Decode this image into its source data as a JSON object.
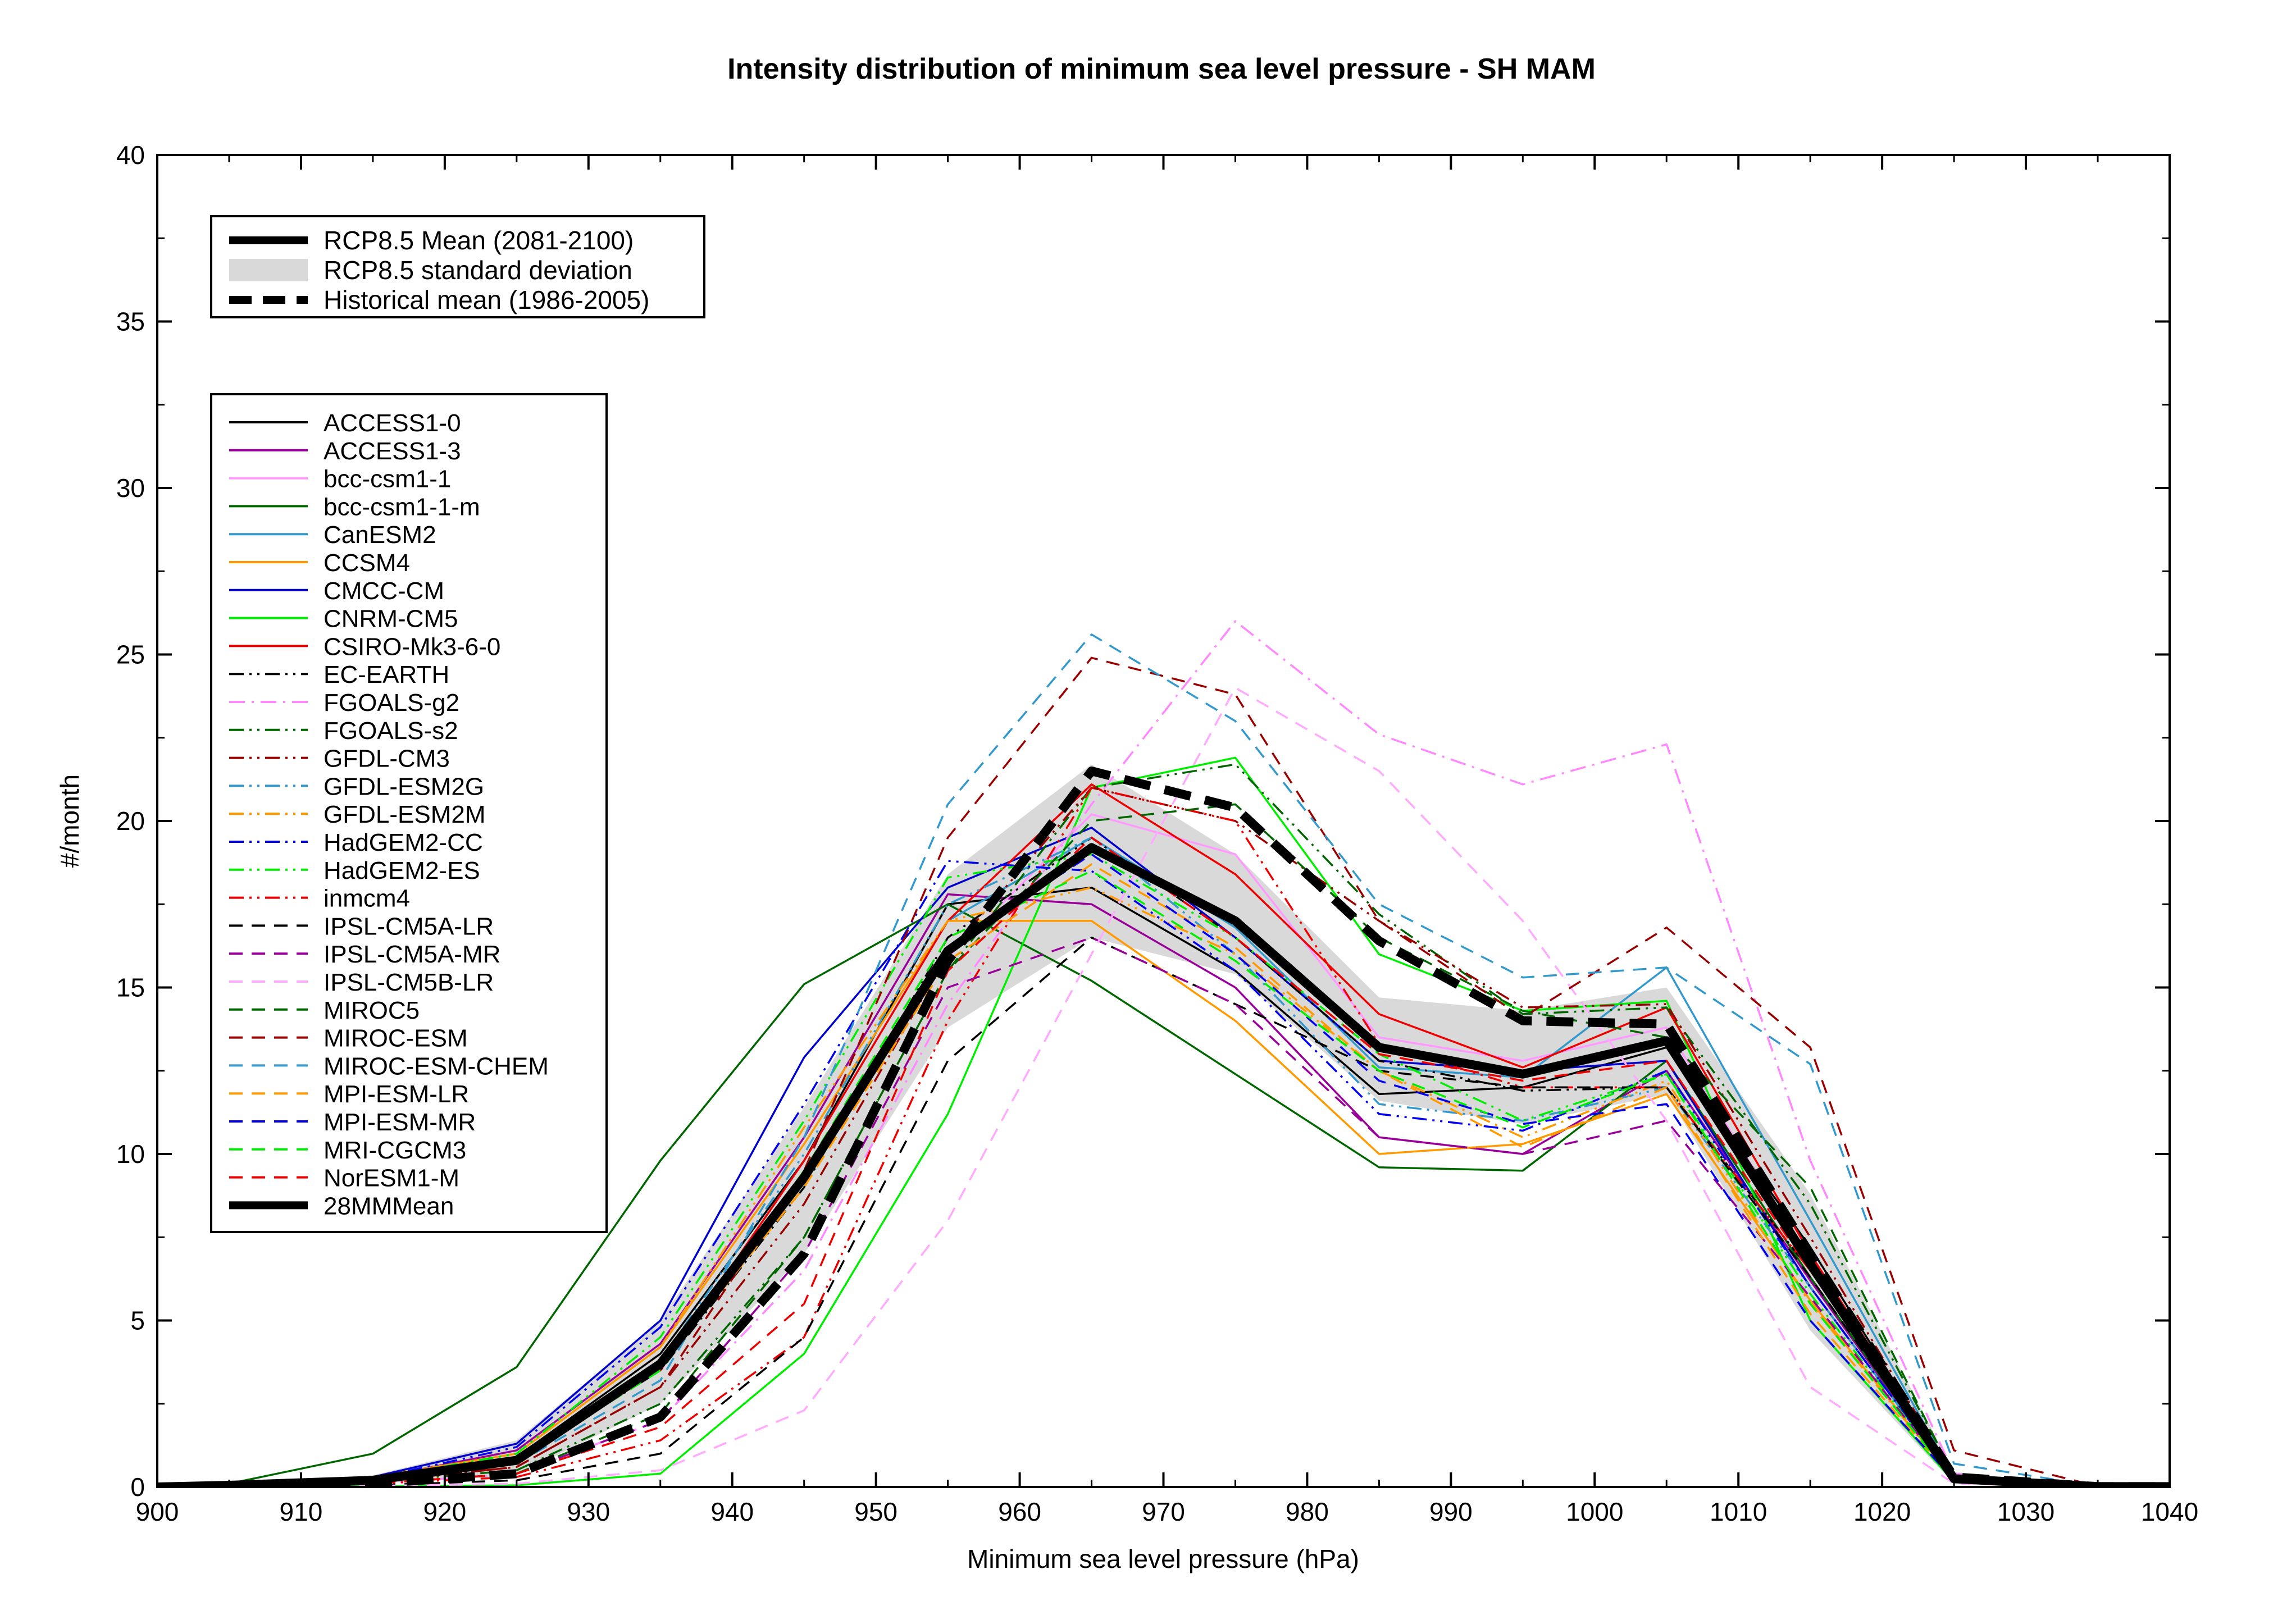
{
  "chart_data": {
    "type": "line",
    "title": "Intensity distribution of minimum sea level pressure - SH MAM",
    "xlabel": "Minimum sea level pressure (hPa)",
    "ylabel": "#/month",
    "xlim": [
      900,
      1040
    ],
    "ylim": [
      0,
      40
    ],
    "xticks": [
      "900",
      "910",
      "920",
      "930",
      "940",
      "950",
      "960",
      "970",
      "980",
      "990",
      "1000",
      "1010",
      "1020",
      "1030",
      "1040"
    ],
    "yticks": [
      "0",
      "5",
      "10",
      "15",
      "20",
      "25",
      "30",
      "35",
      "40"
    ],
    "x": [
      900,
      905,
      915,
      925,
      935,
      945,
      955,
      965,
      975,
      985,
      995,
      1005,
      1015,
      1025,
      1035,
      1040
    ],
    "grid": false,
    "legend_top": {
      "position": "top-left",
      "entries": [
        "RCP8.5 Mean (2081-2100)",
        "RCP8.5 standard deviation",
        "Historical mean (1986-2005)"
      ]
    },
    "legend_models": {
      "position": "upper-left"
    },
    "std_band": {
      "name": "RCP8.5 standard deviation",
      "color": "#d9d9d9",
      "lower": [
        0,
        0.02,
        0.1,
        0.35,
        2.5,
        7.0,
        13.8,
        16.5,
        15.4,
        11.6,
        10.9,
        11.8,
        4.7,
        0.1,
        0,
        0
      ],
      "upper": [
        0.05,
        0.12,
        0.35,
        1.4,
        5.0,
        11.4,
        18.4,
        21.7,
        19.0,
        14.7,
        14.3,
        15.0,
        8.8,
        0.45,
        0.02,
        0.02
      ]
    },
    "rcp_mean": {
      "name": "RCP8.5 Mean (2081-2100)",
      "values": [
        0,
        0.05,
        0.2,
        0.8,
        3.7,
        9.3,
        16.1,
        19.2,
        17.0,
        13.2,
        12.4,
        13.4,
        6.7,
        0.25,
        0.01,
        0.01
      ]
    },
    "historical_mean": {
      "name": "Historical mean (1986-2005)",
      "values": [
        0,
        0.02,
        0.1,
        0.4,
        2.1,
        7.0,
        15.8,
        21.5,
        20.4,
        16.4,
        14.0,
        13.9,
        7.0,
        0.3,
        0.01,
        0.01
      ]
    },
    "series": [
      {
        "name": "ACCESS1-0",
        "color": "#000000",
        "style": "solid",
        "values": [
          0,
          0.05,
          0.25,
          0.9,
          4.0,
          9.8,
          17.5,
          18.0,
          15.5,
          11.8,
          12.0,
          13.2,
          7.2,
          0.3,
          0.01,
          0.01
        ]
      },
      {
        "name": "ACCESS1-3",
        "color": "#990099",
        "style": "solid",
        "values": [
          0,
          0.05,
          0.25,
          1.1,
          4.3,
          10.5,
          17.8,
          17.5,
          15.0,
          10.5,
          10.0,
          12.5,
          6.2,
          0.2,
          0.01,
          0.01
        ]
      },
      {
        "name": "bcc-csm1-1",
        "color": "#ff99ff",
        "style": "solid",
        "values": [
          0,
          0.05,
          0.2,
          0.9,
          3.8,
          9.2,
          15.9,
          20.2,
          19.0,
          13.5,
          12.8,
          13.8,
          6.8,
          0.25,
          0.01,
          0.01
        ]
      },
      {
        "name": "bcc-csm1-1-m",
        "color": "#006600",
        "style": "solid",
        "values": [
          0,
          0.1,
          1.0,
          3.6,
          9.8,
          15.1,
          17.5,
          15.2,
          12.4,
          9.6,
          9.5,
          12.8,
          6.3,
          0.2,
          0.01,
          0.01
        ]
      },
      {
        "name": "CanESM2",
        "color": "#3399cc",
        "style": "solid",
        "values": [
          0,
          0.05,
          0.2,
          0.9,
          3.5,
          9.8,
          17.0,
          19.5,
          16.8,
          12.6,
          12.3,
          15.6,
          8.0,
          0.3,
          0.01,
          0.01
        ]
      },
      {
        "name": "CCSM4",
        "color": "#ff9900",
        "style": "solid",
        "values": [
          0,
          0.05,
          0.3,
          1.0,
          4.2,
          10.3,
          17.0,
          17.0,
          14.0,
          10.0,
          10.3,
          11.8,
          5.6,
          0.2,
          0.01,
          0.01
        ]
      },
      {
        "name": "CMCC-CM",
        "color": "#0000cc",
        "style": "solid",
        "values": [
          0,
          0.05,
          0.3,
          1.3,
          5.0,
          12.9,
          18.0,
          19.8,
          16.5,
          12.8,
          12.5,
          12.8,
          6.0,
          0.2,
          0.01,
          0.01
        ]
      },
      {
        "name": "CNRM-CM5",
        "color": "#00ee00",
        "style": "solid",
        "values": [
          0,
          0.01,
          0.02,
          0.05,
          0.4,
          4.0,
          11.2,
          21.0,
          21.9,
          16.0,
          14.3,
          14.6,
          5.0,
          0.15,
          0.01,
          0.01
        ]
      },
      {
        "name": "CSIRO-Mk3-6-0",
        "color": "#ee0000",
        "style": "solid",
        "values": [
          0,
          0.05,
          0.2,
          0.9,
          3.5,
          9.8,
          17.0,
          21.1,
          18.4,
          14.2,
          12.6,
          14.4,
          7.0,
          0.3,
          0.01,
          0.01
        ]
      },
      {
        "name": "EC-EARTH",
        "color": "#000000",
        "style": "dashdotdot",
        "values": [
          0,
          0.05,
          0.2,
          0.8,
          3.5,
          9.0,
          16.5,
          19.5,
          16.5,
          12.8,
          11.9,
          12.0,
          6.5,
          0.25,
          0.01,
          0.01
        ]
      },
      {
        "name": "FGOALS-g2",
        "color": "#ff88ff",
        "style": "dashdot",
        "values": [
          0,
          0.02,
          0.1,
          0.4,
          2.0,
          6.5,
          14.5,
          20.5,
          26.0,
          22.6,
          21.1,
          22.3,
          9.8,
          0.4,
          0.01,
          0.01
        ]
      },
      {
        "name": "FGOALS-s2",
        "color": "#006600",
        "style": "dashdotdot",
        "values": [
          0,
          0.03,
          0.15,
          0.5,
          2.5,
          7.5,
          15.5,
          21.0,
          21.7,
          17.2,
          14.2,
          14.4,
          8.5,
          0.35,
          0.01,
          0.01
        ]
      },
      {
        "name": "GFDL-CM3",
        "color": "#990000",
        "style": "dashdotdot",
        "values": [
          0,
          0.03,
          0.15,
          0.6,
          3.0,
          8.5,
          16.0,
          21.0,
          20.0,
          17.0,
          14.4,
          14.5,
          7.5,
          0.3,
          0.01,
          0.01
        ]
      },
      {
        "name": "GFDL-ESM2G",
        "color": "#3399cc",
        "style": "dashdotdot",
        "values": [
          0,
          0.05,
          0.2,
          0.9,
          3.8,
          10.0,
          17.5,
          19.5,
          16.0,
          11.5,
          11.0,
          12.0,
          6.0,
          0.2,
          0.01,
          0.01
        ]
      },
      {
        "name": "GFDL-ESM2M",
        "color": "#ff9900",
        "style": "dashdotdot",
        "values": [
          0,
          0.05,
          0.25,
          1.0,
          4.2,
          10.8,
          17.0,
          18.0,
          16.0,
          12.5,
          10.5,
          12.2,
          5.5,
          0.2,
          0.01,
          0.01
        ]
      },
      {
        "name": "HadGEM2-CC",
        "color": "#0000ee",
        "style": "dashdotdot",
        "values": [
          0,
          0.05,
          0.25,
          1.2,
          4.8,
          11.5,
          18.8,
          18.5,
          15.5,
          11.2,
          10.7,
          12.5,
          6.0,
          0.2,
          0.01,
          0.01
        ]
      },
      {
        "name": "HadGEM2-ES",
        "color": "#00ee00",
        "style": "dashdotdot",
        "values": [
          0,
          0.05,
          0.25,
          1.0,
          4.5,
          11.0,
          18.3,
          19.0,
          16.5,
          13.0,
          11.0,
          12.4,
          5.8,
          0.2,
          0.01,
          0.01
        ]
      },
      {
        "name": "inmcm4",
        "color": "#ee0000",
        "style": "dashdotdot",
        "values": [
          0,
          0.02,
          0.1,
          0.3,
          1.4,
          4.5,
          14.0,
          21.0,
          20.0,
          13.3,
          12.0,
          12.0,
          6.5,
          0.25,
          0.01,
          0.01
        ]
      },
      {
        "name": "IPSL-CM5A-LR",
        "color": "#000000",
        "style": "dashed",
        "values": [
          0,
          0.01,
          0.05,
          0.2,
          1.0,
          4.5,
          12.8,
          16.5,
          14.5,
          12.5,
          12.0,
          12.0,
          6.3,
          0.25,
          0.01,
          0.01
        ]
      },
      {
        "name": "IPSL-CM5A-MR",
        "color": "#990099",
        "style": "dashed",
        "values": [
          0,
          0.02,
          0.1,
          0.4,
          2.0,
          7.0,
          15.0,
          16.5,
          14.5,
          10.5,
          10.0,
          11.0,
          5.7,
          0.2,
          0.01,
          0.01
        ]
      },
      {
        "name": "IPSL-CM5B-LR",
        "color": "#ffaaff",
        "style": "dashed",
        "values": [
          0,
          0.01,
          0.03,
          0.1,
          0.5,
          2.3,
          8.0,
          16.0,
          24.0,
          21.5,
          17.0,
          11.0,
          3.0,
          0.1,
          0.01,
          0.01
        ]
      },
      {
        "name": "MIROC5",
        "color": "#006600",
        "style": "dashed",
        "values": [
          0,
          0.02,
          0.1,
          0.4,
          2.2,
          7.5,
          15.5,
          20.0,
          20.5,
          16.5,
          14.3,
          13.5,
          9.0,
          0.3,
          0.01,
          0.01
        ]
      },
      {
        "name": "MIROC-ESM",
        "color": "#990000",
        "style": "dashed",
        "values": [
          0,
          0.03,
          0.15,
          0.6,
          3.0,
          9.5,
          19.5,
          24.9,
          23.8,
          17.0,
          14.1,
          16.8,
          13.2,
          1.1,
          0.02,
          0.02
        ]
      },
      {
        "name": "MIROC-ESM-CHEM",
        "color": "#3399cc",
        "style": "dashed",
        "values": [
          0,
          0.03,
          0.15,
          0.7,
          3.2,
          10.5,
          20.5,
          25.6,
          23.0,
          17.5,
          15.3,
          15.6,
          12.7,
          0.7,
          0.02,
          0.02
        ]
      },
      {
        "name": "MPI-ESM-LR",
        "color": "#ff9900",
        "style": "dashed",
        "values": [
          0,
          0.04,
          0.2,
          0.8,
          3.6,
          9.0,
          15.8,
          18.7,
          16.2,
          12.5,
          10.2,
          12.0,
          5.2,
          0.2,
          0.01,
          0.01
        ]
      },
      {
        "name": "MPI-ESM-MR",
        "color": "#0000ee",
        "style": "dashed",
        "values": [
          0,
          0.04,
          0.2,
          0.8,
          3.6,
          9.3,
          16.2,
          19.0,
          16.0,
          12.2,
          10.9,
          11.5,
          5.0,
          0.2,
          0.01,
          0.01
        ]
      },
      {
        "name": "MRI-CGCM3",
        "color": "#00ee00",
        "style": "dashed",
        "values": [
          0,
          0.04,
          0.2,
          0.8,
          3.5,
          9.5,
          16.5,
          18.5,
          15.8,
          12.5,
          10.8,
          12.4,
          5.5,
          0.2,
          0.01,
          0.01
        ]
      },
      {
        "name": "NorESM1-M",
        "color": "#ee0000",
        "style": "dashed",
        "values": [
          0,
          0.02,
          0.1,
          0.4,
          1.8,
          5.5,
          15.5,
          19.5,
          16.5,
          13.0,
          12.2,
          12.8,
          6.5,
          0.25,
          0.01,
          0.01
        ]
      },
      {
        "name": "28MMMean",
        "color": "#000000",
        "style": "thick",
        "values": [
          0,
          0.05,
          0.2,
          0.8,
          3.7,
          9.3,
          16.1,
          19.2,
          17.0,
          13.2,
          12.4,
          13.4,
          6.7,
          0.25,
          0.01,
          0.01
        ]
      }
    ]
  }
}
